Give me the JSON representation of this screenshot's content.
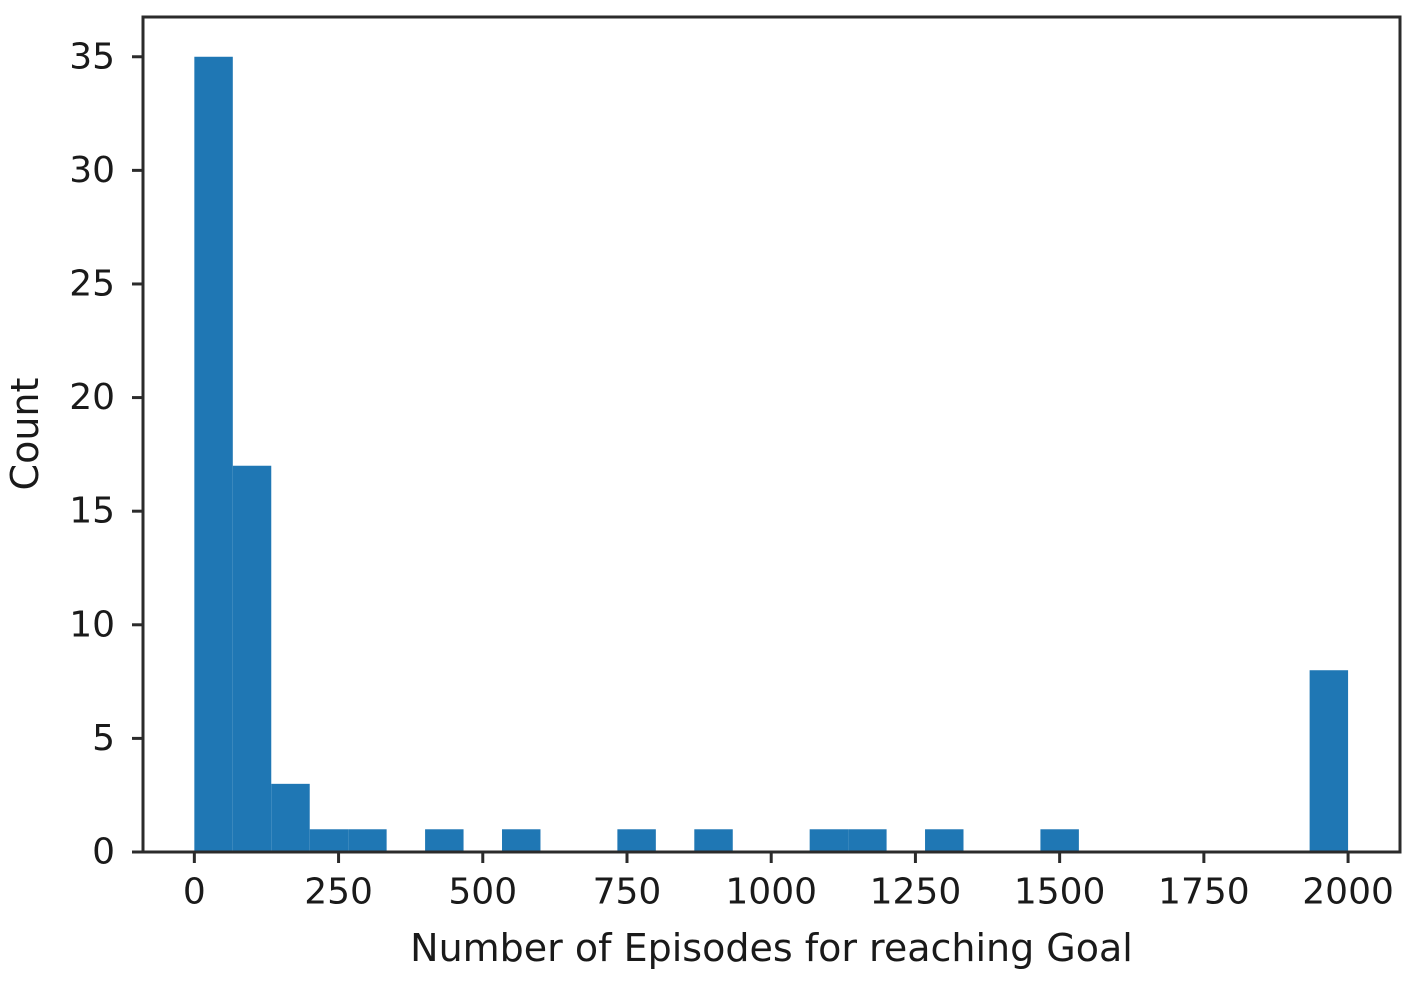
{
  "figure": {
    "background_color": "#ffffff"
  },
  "chart_data": {
    "type": "bar",
    "subtype": "histogram",
    "title": "",
    "xlabel": "Number of Episodes for reaching Goal",
    "ylabel": "Count",
    "bar_color": "#1f77b4",
    "axis_color": "#2b2b2b",
    "text_color": "#1a1a1a",
    "bin_start": 0,
    "bin_width": 66.6667,
    "counts": [
      35,
      17,
      3,
      1,
      1,
      0,
      1,
      0,
      1,
      0,
      0,
      1,
      0,
      1,
      0,
      0,
      1,
      1,
      0,
      1,
      0,
      0,
      1,
      0,
      0,
      0,
      0,
      0,
      0,
      8
    ],
    "x_ticks": [
      0,
      250,
      500,
      750,
      1000,
      1250,
      1500,
      1750,
      2000
    ],
    "y_ticks": [
      0,
      5,
      10,
      15,
      20,
      25,
      30,
      35
    ],
    "xlim": [
      -89,
      2090
    ],
    "ylim": [
      0,
      36.75
    ],
    "grid": false,
    "legend": "none"
  }
}
